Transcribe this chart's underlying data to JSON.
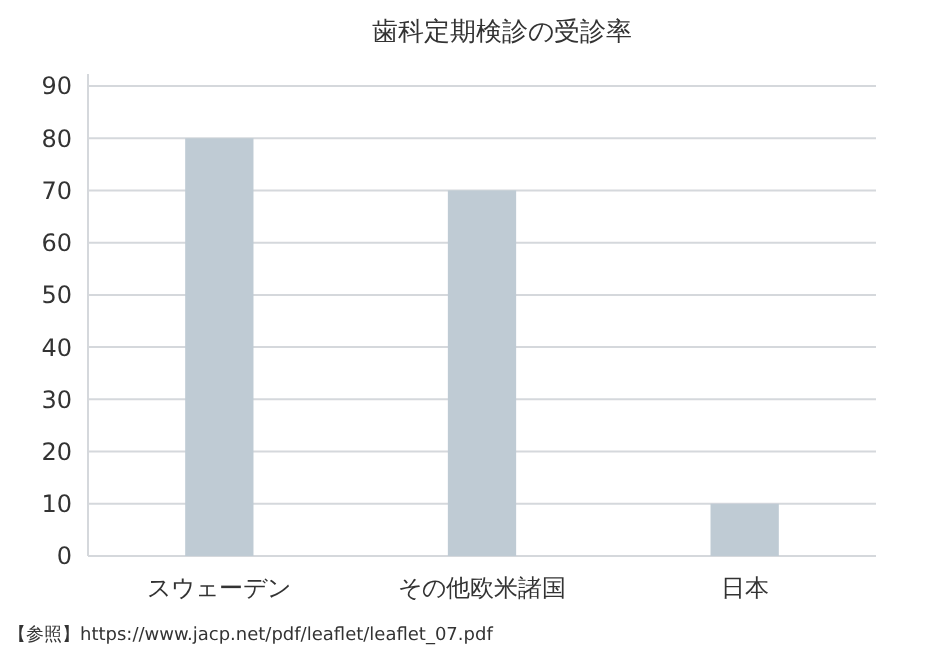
{
  "chart_data": {
    "type": "bar",
    "title": "歯科定期検診の受診率",
    "categories": [
      "スウェーデン",
      "その他欧米諸国",
      "日本"
    ],
    "values": [
      80,
      70,
      10
    ],
    "color": "#bfcbd4",
    "ylim": [
      0,
      90
    ],
    "yticks": [
      0,
      10,
      20,
      30,
      40,
      50,
      60,
      70,
      80,
      90
    ],
    "grid": "y",
    "annotations": [
      "【参照】https://www.jacp.net/pdf/leaflet/leaflet_07.pdf"
    ]
  }
}
